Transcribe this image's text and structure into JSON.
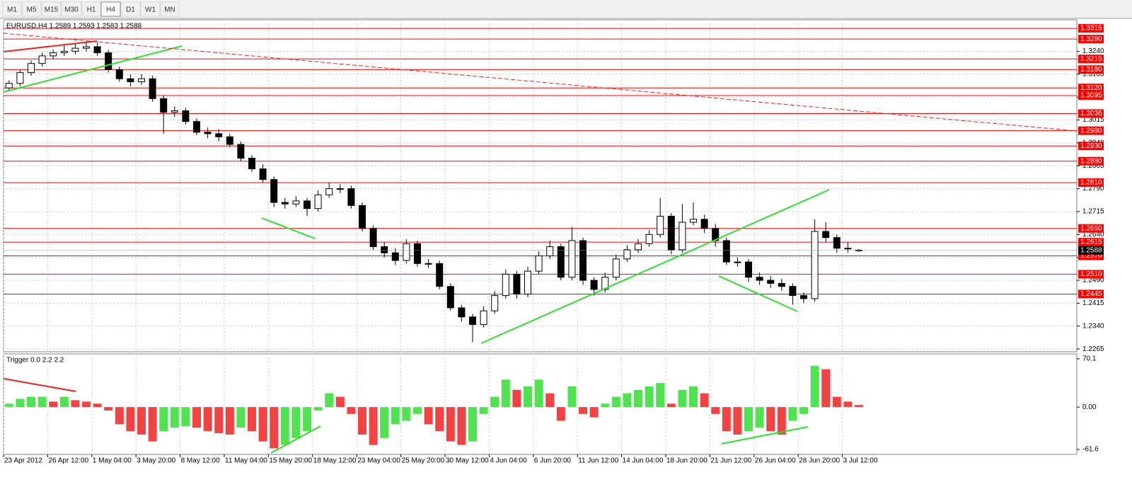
{
  "toolbar": {
    "buttons": [
      "M1",
      "M5",
      "M15",
      "M30",
      "H1",
      "H4",
      "D1",
      "W1",
      "MN"
    ],
    "active_index": 5
  },
  "chart_data": [
    {
      "type": "candlestick",
      "title": "EURUSD,H4  1.2589 1.2593 1.2583 1.2588",
      "categories": [
        "23 Apr 2012",
        null,
        null,
        null,
        "26 Apr 12:00",
        null,
        null,
        null,
        "1 May 04:00",
        null,
        null,
        null,
        "3 May 20:00",
        null,
        null,
        null,
        "8 May 12:00",
        null,
        null,
        null,
        "11 May 04:00",
        null,
        null,
        null,
        "15 May 20:00",
        null,
        null,
        null,
        "18 May 12:00",
        null,
        null,
        null,
        "23 May 04:00",
        null,
        null,
        null,
        "25 May 20:00",
        null,
        null,
        null,
        "30 May 12:00",
        null,
        null,
        null,
        "4 Jun 04:00",
        null,
        null,
        null,
        "6 Jun 20:00",
        null,
        null,
        null,
        "11 Jun 12:00",
        null,
        null,
        null,
        "14 Jun 04:00",
        null,
        null,
        null,
        "18 Jun 20:00",
        null,
        null,
        null,
        "21 Jun 12:00",
        null,
        null,
        null,
        "26 Jun 04:00",
        null,
        null,
        null,
        "28 Jun 20:00",
        null,
        null,
        null,
        "3 Jul 12:00",
        null
      ],
      "open": [
        1.312,
        1.3135,
        1.317,
        1.32,
        1.3225,
        1.3235,
        1.324,
        1.325,
        1.3255,
        1.3235,
        1.318,
        1.315,
        1.314,
        1.315,
        1.3085,
        1.304,
        1.3045,
        1.301,
        1.2975,
        1.297,
        1.296,
        1.2935,
        1.289,
        1.2855,
        1.282,
        1.2745,
        1.274,
        1.275,
        1.2725,
        1.277,
        1.279,
        1.279,
        1.2735,
        1.266,
        1.26,
        1.258,
        1.2555,
        1.261,
        1.2545,
        1.2545,
        1.247,
        1.24,
        1.237,
        1.2345,
        1.239,
        1.244,
        1.251,
        1.2445,
        1.252,
        1.257,
        1.26,
        1.25,
        1.262,
        1.249,
        1.246,
        1.25,
        1.256,
        1.259,
        1.261,
        1.264,
        1.27,
        1.259,
        1.268,
        1.269,
        1.266,
        1.262,
        1.255,
        1.255,
        1.25,
        1.249,
        1.248,
        1.247,
        1.244,
        1.243,
        1.265,
        1.263,
        1.2595,
        1.2589
      ],
      "high": [
        1.3145,
        1.318,
        1.321,
        1.3235,
        1.3245,
        1.326,
        1.3265,
        1.3275,
        1.327,
        1.3245,
        1.319,
        1.3165,
        1.3165,
        1.316,
        1.3095,
        1.306,
        1.3055,
        1.302,
        1.299,
        1.2985,
        1.297,
        1.2945,
        1.29,
        1.287,
        1.283,
        1.276,
        1.2765,
        1.276,
        1.2785,
        1.281,
        1.2805,
        1.28,
        1.2745,
        1.267,
        1.2615,
        1.2595,
        1.2625,
        1.262,
        1.256,
        1.2555,
        1.248,
        1.241,
        1.238,
        1.2405,
        1.2455,
        1.2525,
        1.252,
        1.2535,
        1.2585,
        1.262,
        1.261,
        1.2665,
        1.263,
        1.25,
        1.2515,
        1.2575,
        1.2605,
        1.2625,
        1.2655,
        1.276,
        1.271,
        1.274,
        1.2745,
        1.2705,
        1.2675,
        1.263,
        1.2565,
        1.256,
        1.2515,
        1.2505,
        1.2495,
        1.248,
        1.245,
        1.269,
        1.268,
        1.264,
        1.2615,
        1.2593
      ],
      "low": [
        1.311,
        1.3125,
        1.316,
        1.319,
        1.3215,
        1.3225,
        1.323,
        1.324,
        1.3225,
        1.317,
        1.314,
        1.3125,
        1.313,
        1.3075,
        1.297,
        1.3025,
        1.3,
        1.2965,
        1.2955,
        1.2945,
        1.2925,
        1.288,
        1.2845,
        1.281,
        1.273,
        1.2725,
        1.273,
        1.27,
        1.2715,
        1.276,
        1.2775,
        1.2725,
        1.265,
        1.259,
        1.2565,
        1.254,
        1.2545,
        1.2535,
        1.253,
        1.246,
        1.239,
        1.2355,
        1.2288,
        1.2335,
        1.238,
        1.243,
        1.243,
        1.2435,
        1.251,
        1.256,
        1.249,
        1.249,
        1.2475,
        1.244,
        1.245,
        1.249,
        1.255,
        1.258,
        1.26,
        1.263,
        1.2575,
        1.258,
        1.267,
        1.2645,
        1.26,
        1.254,
        1.2535,
        1.2485,
        1.2475,
        1.2465,
        1.2455,
        1.241,
        1.2415,
        1.242,
        1.2615,
        1.258,
        1.258,
        1.2583
      ],
      "close": [
        1.3135,
        1.317,
        1.32,
        1.3225,
        1.3235,
        1.324,
        1.325,
        1.3255,
        1.3235,
        1.318,
        1.315,
        1.314,
        1.315,
        1.3085,
        1.304,
        1.3045,
        1.301,
        1.2975,
        1.297,
        1.296,
        1.2935,
        1.289,
        1.2855,
        1.282,
        1.2745,
        1.274,
        1.275,
        1.2725,
        1.277,
        1.279,
        1.279,
        1.2735,
        1.266,
        1.26,
        1.258,
        1.2555,
        1.261,
        1.2545,
        1.2545,
        1.247,
        1.24,
        1.237,
        1.2345,
        1.239,
        1.244,
        1.251,
        1.2445,
        1.252,
        1.257,
        1.26,
        1.25,
        1.262,
        1.249,
        1.246,
        1.25,
        1.256,
        1.259,
        1.261,
        1.264,
        1.27,
        1.259,
        1.268,
        1.269,
        1.266,
        1.262,
        1.255,
        1.255,
        1.25,
        1.249,
        1.248,
        1.247,
        1.244,
        1.243,
        1.265,
        1.263,
        1.2595,
        1.2595,
        1.2588
      ],
      "up_color": "#ffffff",
      "down_color": "#000000",
      "line_color": "#000000",
      "ylim": [
        1.2256,
        1.3343
      ],
      "yticks": [
        1.2265,
        {
          "value": 1.234,
          "label": "1.2340"
        },
        1.2415,
        {
          "value": 1.249,
          "label": "1.2490"
        },
        1.2565,
        {
          "value": 1.264,
          "label": "1.2640"
        },
        1.2715,
        {
          "value": 1.279,
          "label": "1.2790"
        },
        1.2865,
        {
          "value": 1.294,
          "label": "1.2940"
        },
        1.3015,
        {
          "value": 1.309,
          "label": "1.3090"
        },
        1.3165,
        {
          "value": 1.324,
          "label": "1.3240"
        }
      ],
      "levels": [
        1.3315,
        {
          "value": 1.328,
          "label": "1.3280"
        },
        1.3215,
        {
          "value": 1.318,
          "label": "1.3180"
        },
        {
          "value": 1.312,
          "label": "1.3120"
        },
        1.3095,
        1.3036,
        {
          "value": 1.298,
          "label": "1.2980"
        },
        {
          "value": 1.293,
          "label": "1.2930"
        },
        {
          "value": 1.288,
          "label": "1.2880"
        },
        {
          "value": 1.281,
          "label": "1.2810"
        },
        {
          "value": 1.266,
          "label": "1.2660"
        },
        1.2615,
        {
          "value": 1.257,
          "label": "1.2570"
        },
        {
          "value": 1.251,
          "label": "1.2510"
        },
        1.2445
      ],
      "level_color": "#ff0000",
      "current_price": 1.2588,
      "grid": true
    },
    {
      "type": "histogram",
      "title": "Trigger 0.0 2.2 2.2",
      "values": [
        5,
        12,
        15,
        15,
        8,
        15,
        10,
        8,
        5,
        -5,
        -25,
        -35,
        -40,
        -50,
        -35,
        -30,
        -28,
        -30,
        -35,
        -38,
        -40,
        -30,
        -35,
        -50,
        -60,
        -55,
        -45,
        -35,
        -5,
        20,
        15,
        -10,
        -40,
        -55,
        -45,
        -25,
        -20,
        -10,
        -25,
        -35,
        -50,
        -55,
        -50,
        -10,
        15,
        40,
        25,
        30,
        40,
        20,
        -20,
        30,
        -10,
        -15,
        5,
        15,
        20,
        25,
        30,
        35,
        5,
        25,
        30,
        20,
        -10,
        -35,
        -40,
        -35,
        -30,
        -35,
        -40,
        -20,
        -10,
        60,
        55,
        15,
        8,
        3
      ],
      "up_color": "#33dd33",
      "down_color": "#ee2222",
      "ylim": [
        -61.6,
        70.1
      ],
      "yticks": [
        70.1,
        {
          "value": 0,
          "label": "0.00"
        },
        -61.6
      ]
    }
  ]
}
